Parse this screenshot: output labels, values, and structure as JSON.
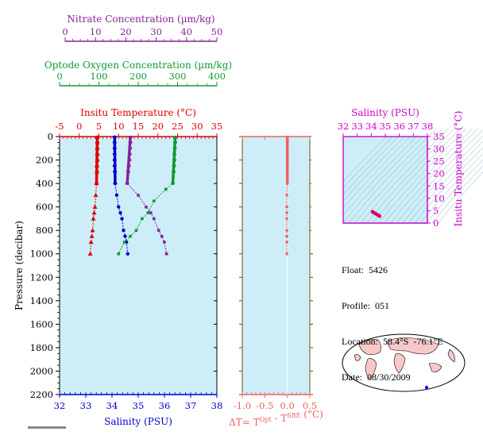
{
  "colors": {
    "panel_bg": "#cdeef8",
    "temperature": "#e00000",
    "salinity": "#0000cc",
    "oxygen": "#119933",
    "nitrate": "#882299",
    "delta_t": "#f06060",
    "ts_axis": "#cc00cc",
    "pressure_axis": "#000000",
    "delta_axis_frame": "#665500"
  },
  "info": {
    "float_label": "Float:",
    "float_value": "5426",
    "profile_label": "Profile:",
    "profile_value": "051",
    "location_label": "Location:",
    "location_value": "58.4°S  -76.1°E",
    "date_label": "Date:",
    "date_value": "08/30/2009"
  },
  "chart_data": [
    {
      "type": "line",
      "name": "main-profile",
      "ylabel": "Pressure (decibar)",
      "ylim": [
        2200,
        0
      ],
      "yticks": [
        0,
        200,
        400,
        600,
        800,
        1000,
        1200,
        1400,
        1600,
        1800,
        2000,
        2200
      ],
      "axes": {
        "temperature": {
          "label": "Insitu Temperature (°C)",
          "lim": [
            -5,
            35
          ],
          "ticks": [
            -5,
            0,
            5,
            10,
            15,
            20,
            25,
            30,
            35
          ]
        },
        "salinity": {
          "label": "Salinity (PSU)",
          "lim": [
            32,
            38
          ],
          "ticks": [
            32,
            33,
            34,
            35,
            36,
            37,
            38
          ]
        },
        "oxygen": {
          "label": "Optode Oxygen Concentration (µm/kg)",
          "lim": [
            0,
            400
          ],
          "ticks": [
            0,
            100,
            200,
            300,
            400
          ]
        },
        "nitrate": {
          "label": "Nitrate Concentration (µm/kg)",
          "lim": [
            0,
            50
          ],
          "ticks": [
            0,
            10,
            20,
            30,
            40,
            50
          ]
        }
      },
      "series": [
        {
          "key": "temperature",
          "axis": "temperature",
          "marker": "triangle",
          "x": [
            4.6,
            4.6,
            4.6,
            4.6,
            4.6,
            4.5,
            4.5,
            4.4,
            4.2,
            4.0,
            3.8,
            3.6,
            3.4,
            3.2,
            3.0,
            2.8
          ],
          "y": [
            5,
            50,
            100,
            150,
            200,
            250,
            300,
            400,
            500,
            600,
            650,
            700,
            800,
            850,
            900,
            1000
          ]
        },
        {
          "key": "salinity",
          "axis": "salinity",
          "marker": "circle",
          "x": [
            34.1,
            34.1,
            34.1,
            34.1,
            34.1,
            34.1,
            34.11,
            34.12,
            34.18,
            34.25,
            34.32,
            34.38,
            34.44,
            34.5,
            34.55,
            34.6
          ],
          "y": [
            5,
            50,
            100,
            150,
            200,
            250,
            300,
            400,
            500,
            600,
            650,
            700,
            800,
            850,
            900,
            1000
          ]
        },
        {
          "key": "oxygen",
          "axis": "oxygen",
          "marker": "square",
          "x": [
            294,
            294,
            293,
            292,
            292,
            291,
            290,
            288,
            270,
            240,
            225,
            210,
            195,
            180,
            165,
            150
          ],
          "y": [
            5,
            50,
            100,
            150,
            200,
            250,
            300,
            400,
            450,
            550,
            650,
            700,
            800,
            850,
            900,
            1000
          ]
        },
        {
          "key": "nitrate",
          "axis": "nitrate",
          "marker": "square",
          "x": [
            22.5,
            22.5,
            22.4,
            22.3,
            22.2,
            22.0,
            21.8,
            21.5,
            25.0,
            27.5,
            29.0,
            30.0,
            31.5,
            32.5,
            33.3,
            34.0
          ],
          "y": [
            5,
            50,
            100,
            150,
            200,
            250,
            300,
            400,
            500,
            600,
            650,
            700,
            800,
            850,
            900,
            1000
          ]
        }
      ]
    },
    {
      "type": "line",
      "name": "delta-t",
      "xlabel": "ΔT= T",
      "xlabel_sup1": "Opt",
      "xlabel_mid": " - T",
      "xlabel_sup2": "SBE",
      "xlabel_end": " (°C)",
      "xlim": [
        -1.0,
        0.5
      ],
      "xticks": [
        -1.0,
        -0.5,
        0.0,
        0.5
      ],
      "xticklabels": [
        "-1.0",
        "-0.5",
        "0.0",
        "0.5"
      ],
      "ylim": [
        2200,
        0
      ],
      "series": [
        {
          "key": "delta_t",
          "x": [
            0.0,
            0.0,
            0.0,
            0.0,
            0.0,
            0.0,
            0.0,
            0.0,
            -0.01,
            -0.01,
            -0.01,
            -0.01,
            -0.01,
            -0.01,
            -0.01,
            -0.01
          ],
          "y": [
            5,
            50,
            100,
            150,
            200,
            250,
            300,
            400,
            500,
            600,
            650,
            700,
            800,
            850,
            900,
            1000
          ]
        }
      ]
    },
    {
      "type": "scatter",
      "name": "ts-diagram",
      "xlabel": "Salinity (PSU)",
      "ylabel": "Insitu Temperature (°C)",
      "xlim": [
        32,
        38
      ],
      "ylim": [
        0,
        35
      ],
      "xticks": [
        32,
        33,
        34,
        35,
        36,
        37,
        38
      ],
      "yticks": [
        0,
        5,
        10,
        15,
        20,
        25,
        30,
        35
      ],
      "points": {
        "x": [
          34.1,
          34.1,
          34.1,
          34.11,
          34.12,
          34.18,
          34.25,
          34.32,
          34.38,
          34.44,
          34.5,
          34.55,
          34.6
        ],
        "y": [
          4.6,
          4.6,
          4.5,
          4.5,
          4.4,
          4.2,
          4.0,
          3.8,
          3.6,
          3.4,
          3.2,
          3.0,
          2.8
        ]
      }
    }
  ]
}
